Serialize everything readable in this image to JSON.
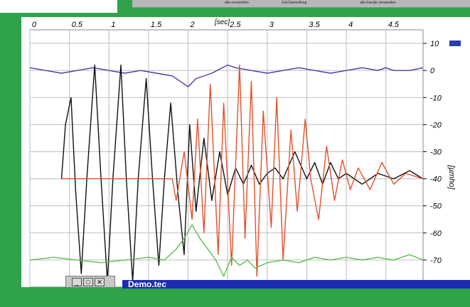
{
  "toolbar_strip": {
    "item1": "alle verwenden",
    "item2": "Zeit-Darstellung",
    "item3": "alle Kanäle verwenden"
  },
  "window_controls": {
    "minimize": "_",
    "maximize": "□",
    "close": "✕"
  },
  "taskbar": {
    "title": "Demo.tec"
  },
  "colors": {
    "background": "#2fa24a",
    "grid": "#bdbdbd",
    "blue_series": "#4a3aa8",
    "black_series": "#111111",
    "red_series": "#e0522c",
    "green_series": "#5cbf4e",
    "taskbar": "#1e2bb0"
  },
  "chart_data": {
    "type": "line",
    "xlabel": "[sec]",
    "ylabel": "[µmho]",
    "xlim": [
      0,
      4.97
    ],
    "ylim": [
      -80,
      15
    ],
    "x_ticks": [
      "0",
      "0.5",
      "1",
      "1.5",
      "2",
      "2.5",
      "3",
      "3.5",
      "4",
      "4.5"
    ],
    "y_ticks": [
      "10",
      "0",
      "-10",
      "-20",
      "-30",
      "-40",
      "-50",
      "-60",
      "-70"
    ],
    "x_tick_values": [
      0,
      0.5,
      1,
      1.5,
      2,
      2.5,
      3,
      3.5,
      4,
      4.5
    ],
    "y_tick_values": [
      10,
      0,
      -10,
      -20,
      -30,
      -40,
      -50,
      -60,
      -70
    ],
    "grid": true,
    "series": [
      {
        "color": "#4a3aa8",
        "x": [
          0,
          0.2,
          0.4,
          0.6,
          0.8,
          1.0,
          1.2,
          1.4,
          1.6,
          1.8,
          1.9,
          2.0,
          2.1,
          2.3,
          2.5,
          2.6,
          2.8,
          3.0,
          3.2,
          3.4,
          3.6,
          3.8,
          4.0,
          4.2,
          4.4,
          4.5,
          4.6,
          4.8,
          4.97
        ],
        "y": [
          1,
          0,
          -1,
          0,
          1,
          0,
          -1,
          0,
          -1,
          -2,
          -4,
          -6,
          -3,
          -1,
          2,
          1,
          0,
          -1,
          0,
          1,
          0,
          -1,
          0,
          1,
          0,
          1,
          0,
          0,
          1
        ]
      },
      {
        "color": "#111111",
        "x": [
          0.4,
          0.45,
          0.52,
          0.58,
          0.65,
          0.72,
          0.82,
          0.9,
          0.98,
          1.05,
          1.15,
          1.22,
          1.3,
          1.37,
          1.47,
          1.55,
          1.63,
          1.7,
          1.78,
          1.87,
          1.95,
          2.02,
          2.1,
          2.2,
          2.3,
          2.4,
          2.5,
          2.6,
          2.7,
          2.8,
          2.9,
          3.0,
          3.1,
          3.2,
          3.35,
          3.5,
          3.6,
          3.7,
          3.8,
          3.9,
          4.0,
          4.2,
          4.4,
          4.6,
          4.8,
          4.97
        ],
        "y": [
          -40,
          -20,
          -10,
          -45,
          -75,
          -40,
          2,
          -40,
          -78,
          -40,
          2,
          -40,
          -78,
          -40,
          -3,
          -40,
          -72,
          -40,
          -12,
          -45,
          -68,
          -20,
          -52,
          -25,
          -48,
          -30,
          -46,
          -36,
          -42,
          -35,
          -42,
          -38,
          -36,
          -40,
          -30,
          -40,
          -34,
          -42,
          -34,
          -40,
          -38,
          -42,
          -38,
          -40,
          -37,
          -40
        ]
      },
      {
        "color": "#e0522c",
        "x": [
          0.4,
          0.8,
          1.2,
          1.6,
          1.8,
          1.85,
          1.95,
          2.05,
          2.12,
          2.2,
          2.28,
          2.38,
          2.45,
          2.55,
          2.65,
          2.72,
          2.8,
          2.87,
          2.95,
          3.05,
          3.12,
          3.2,
          3.3,
          3.38,
          3.48,
          3.55,
          3.65,
          3.75,
          3.85,
          3.95,
          4.05,
          4.15,
          4.3,
          4.45,
          4.6,
          4.75,
          4.97
        ],
        "y": [
          -40,
          -40,
          -40,
          -40,
          -40,
          -48,
          -30,
          -55,
          -18,
          -60,
          -5,
          -68,
          -12,
          -72,
          2,
          -62,
          -4,
          -76,
          -15,
          -58,
          -10,
          -70,
          -22,
          -52,
          -18,
          -40,
          -55,
          -28,
          -48,
          -33,
          -44,
          -36,
          -44,
          -34,
          -42,
          -38,
          -40
        ]
      },
      {
        "color": "#5cbf4e",
        "x": [
          0,
          0.3,
          0.6,
          0.9,
          1.2,
          1.5,
          1.7,
          1.85,
          1.95,
          2.05,
          2.15,
          2.25,
          2.35,
          2.45,
          2.55,
          2.65,
          2.75,
          2.85,
          3.0,
          3.2,
          3.4,
          3.6,
          3.8,
          4.0,
          4.2,
          4.4,
          4.6,
          4.8,
          4.97
        ],
        "y": [
          -70,
          -69,
          -70,
          -71,
          -70,
          -69,
          -70,
          -66,
          -62,
          -57,
          -62,
          -66,
          -70,
          -76,
          -69,
          -72,
          -70,
          -73,
          -71,
          -70,
          -71,
          -69,
          -70,
          -69,
          -70,
          -69,
          -70,
          -68,
          -70
        ]
      }
    ]
  }
}
